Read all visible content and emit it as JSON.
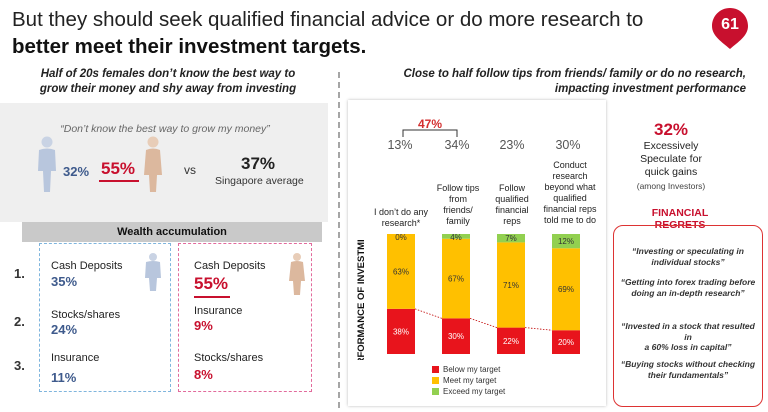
{
  "header": {
    "title_line1": "But they should seek qualified financial advice or do more research to",
    "title_line2": "better meet their investment targets.",
    "page_badge": "61"
  },
  "left": {
    "heading_line1": "Half of 20s females don’t know the best way to",
    "heading_line2": "grow their money and shy away from investing",
    "quote": "“Don’t know the best way to grow my money”",
    "male_pct": "32%",
    "female_pct": "55%",
    "vs": "vs",
    "singapore_pct": "37%",
    "singapore_label": "Singapore average",
    "wealth_title": "Wealth accumulation",
    "rank_numbers": [
      "1.",
      "2.",
      "3."
    ],
    "male_items": [
      {
        "label": "Cash Deposits",
        "value": "35%"
      },
      {
        "label": "Stocks/shares",
        "value": "24%"
      },
      {
        "label": "Insurance",
        "value": "11%"
      }
    ],
    "female_items": [
      {
        "label": "Cash Deposits",
        "value": "55%"
      },
      {
        "label": "Insurance",
        "value": "9%"
      },
      {
        "label": "Stocks/shares",
        "value": "8%"
      }
    ],
    "colors": {
      "male": "#3e5a8c",
      "female": "#c8102e",
      "male_box": "#7fb5dd",
      "female_box": "#e26a9c"
    }
  },
  "right": {
    "heading_line1": "Close to half follow tips from friends/ family or do no research,",
    "heading_line2": "impacting investment performance",
    "bracket_pct": "47%",
    "speculate_pct": "32%",
    "speculate_lines": [
      "Excessively",
      "Speculate for",
      "quick gains"
    ],
    "speculate_sub": "(among Investors)",
    "regrets_title": "FINANCIAL REGRETS",
    "regrets": [
      [
        "“Investing or speculating in",
        "individual stocks”"
      ],
      [
        "“Getting into forex trading before",
        "doing an in-depth research”"
      ],
      [
        "“Invested in a stock that resulted in",
        "a 60% loss in capital”"
      ],
      [
        "“Buying stocks without checking",
        "their fundamentals”"
      ]
    ]
  },
  "chart_data": {
    "type": "bar",
    "stacked": true,
    "ylabel": "PERFORMANCE OF INVESTMENT",
    "categories": [
      "I don’t do any research*",
      "Follow tips from friends/ family",
      "Follow qualified financial reps",
      "Conduct research beyond what qualified financial reps told me to do"
    ],
    "category_lines": [
      [
        "I don’t do any",
        "research*"
      ],
      [
        "Follow tips",
        "from",
        "friends/",
        "family"
      ],
      [
        "Follow",
        "qualified",
        "financial",
        "reps"
      ],
      [
        "Conduct",
        "research",
        "beyond what",
        "qualified",
        "financial reps",
        "told me to do"
      ]
    ],
    "category_pcts": [
      "13%",
      "34%",
      "23%",
      "30%"
    ],
    "series": [
      {
        "name": "Below my target",
        "values": [
          38,
          30,
          22,
          20
        ],
        "labels": [
          "38%",
          "30%",
          "22%",
          "20%"
        ],
        "color": "#e8141c"
      },
      {
        "name": "Meet my target",
        "values": [
          63,
          67,
          71,
          69
        ],
        "labels": [
          "63%",
          "67%",
          "71%",
          "69%"
        ],
        "color": "#ffc000"
      },
      {
        "name": "Exceed my target",
        "values": [
          0,
          4,
          7,
          12
        ],
        "labels": [
          "0%",
          "4%",
          "7%",
          "12%"
        ],
        "color": "#92d050"
      }
    ],
    "legend_position": "bottom"
  }
}
